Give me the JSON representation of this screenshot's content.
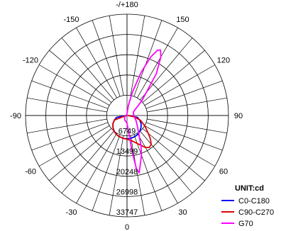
{
  "chart_data": {
    "type": "polar",
    "angle_labels": [
      {
        "label": "-/+180",
        "deg": 180
      },
      {
        "label": "150",
        "deg": 150
      },
      {
        "label": "-150",
        "deg": -150
      },
      {
        "label": "120",
        "deg": 120
      },
      {
        "label": "-120",
        "deg": -120
      },
      {
        "label": "90",
        "deg": 90
      },
      {
        "label": "-90",
        "deg": -90
      },
      {
        "label": "60",
        "deg": 60
      },
      {
        "label": "-60",
        "deg": -60
      },
      {
        "label": "30",
        "deg": 30
      },
      {
        "label": "-30",
        "deg": -30
      },
      {
        "label": "0",
        "deg": 0
      }
    ],
    "angle_step": 10,
    "rings": [
      6749,
      13499,
      20248,
      26998,
      33747
    ],
    "r_max": 33747,
    "legend": {
      "title": "UNIT:cd",
      "items": [
        "C0-C180",
        "C90-C270",
        "G70"
      ]
    },
    "series": [
      {
        "name": "C0-C180",
        "color": "#0000ff",
        "points": [
          [
            -90,
            300
          ],
          [
            -80,
            3500
          ],
          [
            -70,
            4500
          ],
          [
            -60,
            5400
          ],
          [
            -50,
            6100
          ],
          [
            -40,
            6700
          ],
          [
            -30,
            7200
          ],
          [
            -20,
            7500
          ],
          [
            -10,
            7700
          ],
          [
            0,
            7800
          ],
          [
            10,
            7700
          ],
          [
            20,
            7500
          ],
          [
            30,
            7200
          ],
          [
            40,
            6700
          ],
          [
            50,
            6100
          ],
          [
            60,
            5400
          ],
          [
            70,
            4500
          ],
          [
            80,
            3500
          ],
          [
            90,
            300
          ]
        ]
      },
      {
        "name": "C90-C270",
        "color": "#dd0000",
        "points": [
          [
            -90,
            300
          ],
          [
            -70,
            4500
          ],
          [
            -60,
            5400
          ],
          [
            -50,
            6100
          ],
          [
            -40,
            6800
          ],
          [
            -30,
            7200
          ],
          [
            -20,
            7500
          ],
          [
            -10,
            7700
          ],
          [
            0,
            7900
          ],
          [
            10,
            8500
          ],
          [
            20,
            9900
          ],
          [
            30,
            12300
          ],
          [
            35,
            13000
          ],
          [
            40,
            12500
          ],
          [
            45,
            11000
          ],
          [
            50,
            9200
          ],
          [
            60,
            6800
          ],
          [
            70,
            4800
          ],
          [
            80,
            2500
          ],
          [
            90,
            300
          ]
        ]
      },
      {
        "name": "G70",
        "color": "#ff00ff",
        "points": [
          [
            -90,
            200
          ],
          [
            -60,
            900
          ],
          [
            -30,
            1600
          ],
          [
            -10,
            2100
          ],
          [
            0,
            2600
          ],
          [
            5,
            5000
          ],
          [
            8,
            12000
          ],
          [
            10,
            18000
          ],
          [
            12,
            19500
          ],
          [
            15,
            17000
          ],
          [
            20,
            14000
          ],
          [
            25,
            11000
          ],
          [
            30,
            8200
          ],
          [
            40,
            5600
          ],
          [
            60,
            3500
          ],
          [
            80,
            2400
          ],
          [
            100,
            2200
          ],
          [
            120,
            2500
          ],
          [
            135,
            7000
          ],
          [
            145,
            17000
          ],
          [
            150,
            22500
          ],
          [
            153,
            24500
          ],
          [
            155,
            24000
          ],
          [
            158,
            21000
          ],
          [
            162,
            15000
          ],
          [
            167,
            8000
          ],
          [
            172,
            3500
          ],
          [
            176,
            1200
          ],
          [
            180,
            600
          ],
          [
            -170,
            400
          ],
          [
            -150,
            250
          ],
          [
            -120,
            200
          ],
          [
            -90,
            200
          ]
        ]
      }
    ]
  }
}
